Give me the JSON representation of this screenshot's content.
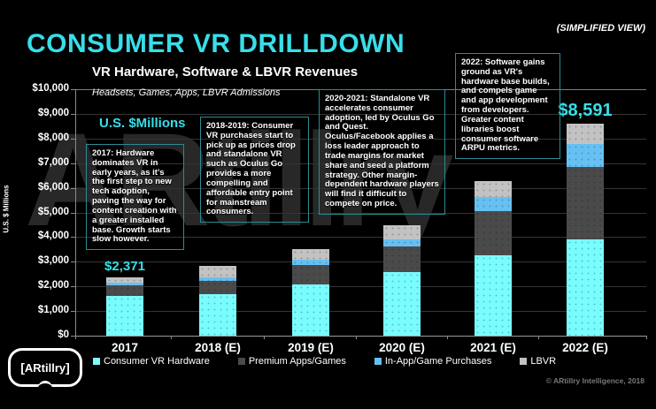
{
  "header": {
    "title": "CONSUMER VR DRILLDOWN",
    "view_tag": "(SIMPLIFIED VIEW)",
    "subtitle": "VR Hardware, Software & LBVR Revenues",
    "subtitle2": "Headsets, Games, Apps, LBVR Admissions",
    "units_label": "U.S. $Millions"
  },
  "annotations": [
    {
      "period": "2017",
      "text": "2017: Hardware dominates VR in early years, as it's the first step to new tech adoption, paving the way for content creation with a greater installed base. Growth starts slow however."
    },
    {
      "period": "2018-2019",
      "text": "2018-2019: Consumer VR purchases start to pick up as prices drop and standalone VR such as Oculus Go provides a more compelling and affordable entry point for mainstream consumers."
    },
    {
      "period": "2020-2021",
      "text": "2020-2021: Standalone VR accelerates consumer adoption, led by Oculus Go and Quest. Oculus/Facebook applies a loss leader approach to trade margins for market share and seed a platform strategy. Other margin-dependent hardware players will find it difficult to compete on price."
    },
    {
      "period": "2022",
      "text": "2022: Software gains ground as VR's hardware base builds, and compels game and app development from developers. Greater content libraries boost consumer software ARPU metrics."
    }
  ],
  "chart_data": {
    "type": "bar",
    "stacked": true,
    "title": "VR Hardware, Software & LBVR Revenues",
    "xlabel": "",
    "ylabel": "U.S. $ Millions",
    "ylim": [
      0,
      10000
    ],
    "grid": true,
    "legend_position": "bottom",
    "yticks": [
      {
        "value": 0,
        "label": "$0"
      },
      {
        "value": 1000,
        "label": "$1,000"
      },
      {
        "value": 2000,
        "label": "$2,000"
      },
      {
        "value": 3000,
        "label": "$3,000"
      },
      {
        "value": 4000,
        "label": "$4,000"
      },
      {
        "value": 5000,
        "label": "$5,000"
      },
      {
        "value": 6000,
        "label": "$6,000"
      },
      {
        "value": 7000,
        "label": "$7,000"
      },
      {
        "value": 8000,
        "label": "$8,000"
      },
      {
        "value": 9000,
        "label": "$9,000"
      },
      {
        "value": 10000,
        "label": "$10,000"
      }
    ],
    "categories": [
      "2017",
      "2018 (E)",
      "2019 (E)",
      "2020 (E)",
      "2021 (E)",
      "2022 (E)"
    ],
    "series": [
      {
        "name": "Consumer VR Hardware",
        "color": "#79FCFD",
        "values": [
          1610,
          1690,
          2090,
          2565,
          3260,
          3900
        ]
      },
      {
        "name": "Premium Apps/Games",
        "color": "#4A4A4A",
        "values": [
          430,
          515,
          775,
          1050,
          1780,
          2960
        ]
      },
      {
        "name": "In-App/Game Purchases",
        "color": "#66C0F2",
        "values": [
          110,
          145,
          205,
          285,
          570,
          925
        ]
      },
      {
        "name": "LBVR",
        "color": "#C2C2C2",
        "values": [
          221,
          490,
          430,
          575,
          655,
          806
        ]
      }
    ],
    "totals": [
      2371,
      2840,
      3500,
      4475,
      6265,
      8591
    ],
    "value_labels": [
      {
        "category": "2017",
        "label": "$2,371",
        "emphasis": false
      },
      {
        "category": "2022 (E)",
        "label": "$8,591",
        "emphasis": true
      }
    ]
  },
  "footer": {
    "copyright": "© ARtillry Intelligence, 2018",
    "logo_text": "ARtillry"
  },
  "watermark": "ARtillry",
  "colors": {
    "background": "#000000",
    "accent_cyan": "#38DEE9",
    "note_border": "#2A8C93",
    "gridline": "#343434",
    "gridline_top": "#7D7D7D",
    "axis": "#9A9A9A"
  }
}
